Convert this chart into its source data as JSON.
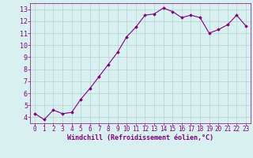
{
  "x": [
    0,
    1,
    2,
    3,
    4,
    5,
    6,
    7,
    8,
    9,
    10,
    11,
    12,
    13,
    14,
    15,
    16,
    17,
    18,
    19,
    20,
    21,
    22,
    23
  ],
  "y": [
    4.3,
    3.8,
    4.6,
    4.3,
    4.4,
    5.5,
    6.4,
    7.4,
    8.4,
    9.4,
    10.7,
    11.5,
    12.5,
    12.6,
    13.1,
    12.8,
    12.3,
    12.5,
    12.3,
    11.0,
    11.3,
    11.7,
    12.5,
    11.6
  ],
  "line_color": "#800080",
  "marker": "D",
  "marker_size": 1.8,
  "bg_color": "#d8f0f0",
  "grid_color": "#b0c8c8",
  "xlabel": "Windchill (Refroidissement éolien,°C)",
  "xlabel_color": "#800080",
  "tick_color": "#800080",
  "ylim": [
    3.5,
    13.5
  ],
  "xlim": [
    -0.5,
    23.5
  ],
  "yticks": [
    4,
    5,
    6,
    7,
    8,
    9,
    10,
    11,
    12,
    13
  ],
  "xticks": [
    0,
    1,
    2,
    3,
    4,
    5,
    6,
    7,
    8,
    9,
    10,
    11,
    12,
    13,
    14,
    15,
    16,
    17,
    18,
    19,
    20,
    21,
    22,
    23
  ],
  "spine_color": "#800080",
  "linewidth": 0.8,
  "tick_fontsize": 5.5,
  "xlabel_fontsize": 6.0,
  "ytick_fontsize": 6.0
}
